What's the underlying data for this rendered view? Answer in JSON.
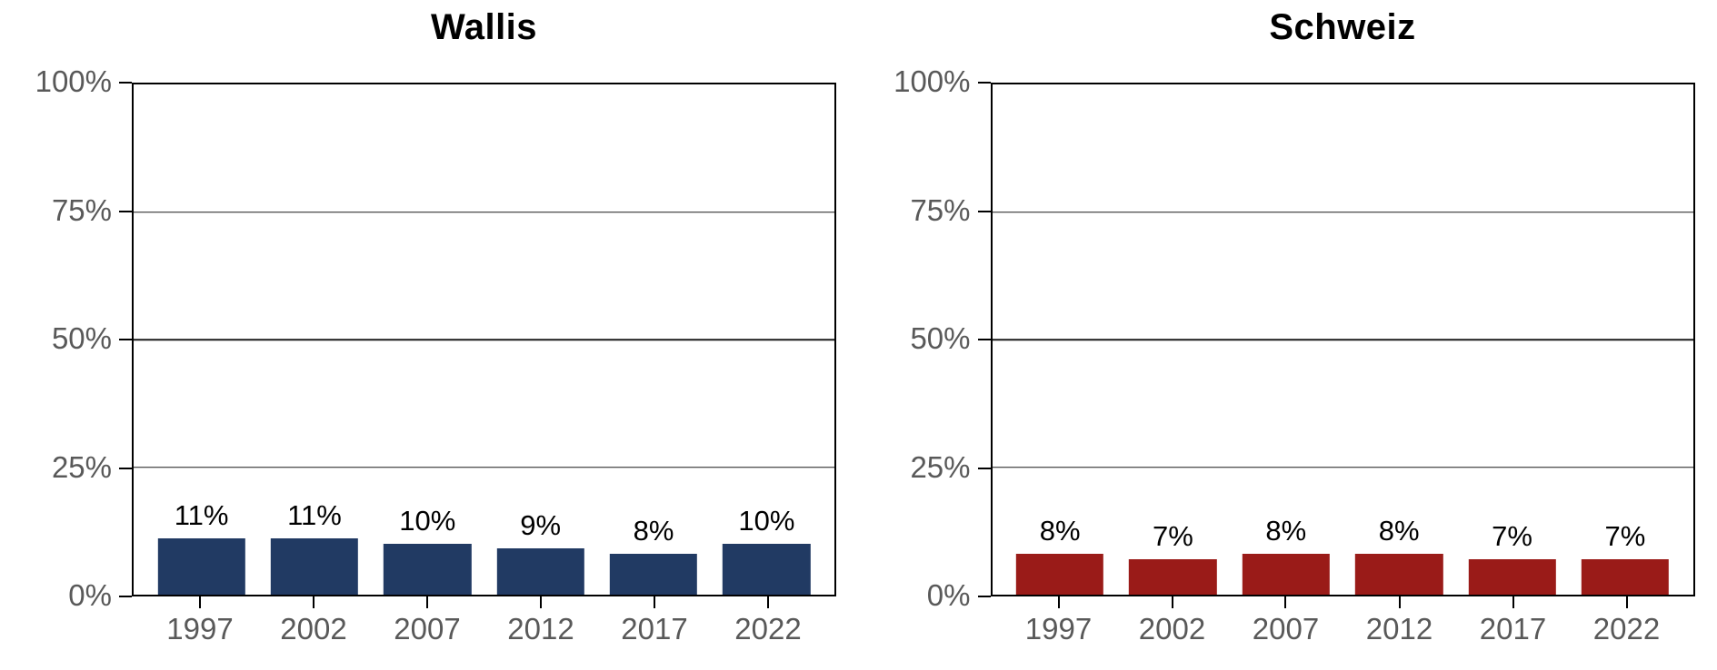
{
  "colors": {
    "wallis_bar": "#213A63",
    "schweiz_bar": "#9A1B18",
    "axis_line": "#000000",
    "grid_line": "#1a1a1a",
    "tick_label": "#595959",
    "value_label": "#000000",
    "title": "#000000",
    "background": "#ffffff"
  },
  "chart_data": [
    {
      "type": "bar",
      "title": "Wallis",
      "categories": [
        "1997",
        "2002",
        "2007",
        "2012",
        "2017",
        "2022"
      ],
      "values": [
        11,
        11,
        10,
        9,
        8,
        10
      ],
      "value_labels": [
        "11%",
        "11%",
        "10%",
        "9%",
        "8%",
        "10%"
      ],
      "bar_color": "#213A63",
      "xlabel": "",
      "ylabel": "",
      "ylim": [
        0,
        100
      ],
      "yticks": [
        {
          "value": 0,
          "label": "0%"
        },
        {
          "value": 25,
          "label": "25%"
        },
        {
          "value": 50,
          "label": "50%"
        },
        {
          "value": 75,
          "label": "75%"
        },
        {
          "value": 100,
          "label": "100%"
        }
      ],
      "gridlines": [
        25,
        50,
        75
      ],
      "grid": true,
      "legend_position": "none",
      "plot_border": true
    },
    {
      "type": "bar",
      "title": "Schweiz",
      "categories": [
        "1997",
        "2002",
        "2007",
        "2012",
        "2017",
        "2022"
      ],
      "values": [
        8,
        7,
        8,
        8,
        7,
        7
      ],
      "value_labels": [
        "8%",
        "7%",
        "8%",
        "8%",
        "7%",
        "7%"
      ],
      "bar_color": "#9A1B18",
      "xlabel": "",
      "ylabel": "",
      "ylim": [
        0,
        100
      ],
      "yticks": [
        {
          "value": 0,
          "label": "0%"
        },
        {
          "value": 25,
          "label": "25%"
        },
        {
          "value": 50,
          "label": "50%"
        },
        {
          "value": 75,
          "label": "75%"
        },
        {
          "value": 100,
          "label": "100%"
        }
      ],
      "gridlines": [
        25,
        50,
        75
      ],
      "grid": true,
      "legend_position": "none",
      "plot_border": true
    }
  ]
}
